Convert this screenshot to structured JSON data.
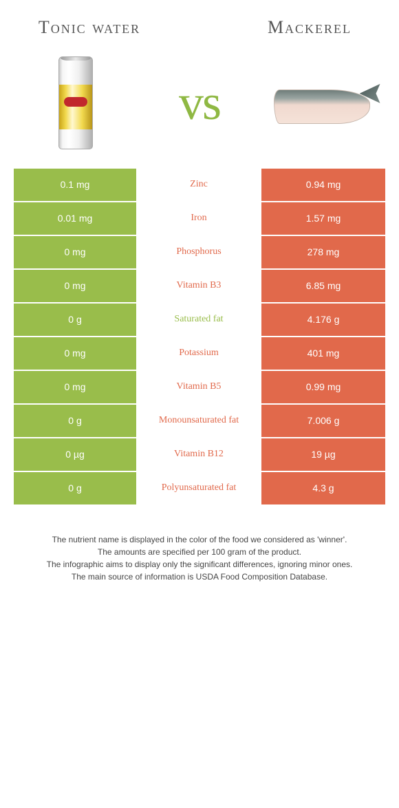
{
  "header": {
    "left_title": "Tonic water",
    "right_title": "Mackerel",
    "vs": "vs"
  },
  "colors": {
    "left": "#99bd4b",
    "right": "#e1694b",
    "vs": "#8fb843"
  },
  "rows": [
    {
      "left": "0.1 mg",
      "name": "Zinc",
      "winner": "right",
      "right": "0.94 mg"
    },
    {
      "left": "0.01 mg",
      "name": "Iron",
      "winner": "right",
      "right": "1.57 mg"
    },
    {
      "left": "0 mg",
      "name": "Phosphorus",
      "winner": "right",
      "right": "278 mg"
    },
    {
      "left": "0 mg",
      "name": "Vitamin B3",
      "winner": "right",
      "right": "6.85 mg"
    },
    {
      "left": "0 g",
      "name": "Saturated fat",
      "winner": "left",
      "right": "4.176 g"
    },
    {
      "left": "0 mg",
      "name": "Potassium",
      "winner": "right",
      "right": "401 mg"
    },
    {
      "left": "0 mg",
      "name": "Vitamin B5",
      "winner": "right",
      "right": "0.99 mg"
    },
    {
      "left": "0 g",
      "name": "Monounsaturated fat",
      "winner": "right",
      "right": "7.006 g"
    },
    {
      "left": "0 µg",
      "name": "Vitamin B12",
      "winner": "right",
      "right": "19 µg"
    },
    {
      "left": "0 g",
      "name": "Polyunsaturated fat",
      "winner": "right",
      "right": "4.3 g"
    }
  ],
  "footer": {
    "line1": "The nutrient name is displayed in the color of the food we considered as 'winner'.",
    "line2": "The amounts are specified per 100 gram of the product.",
    "line3": "The infographic aims to display only the significant differences, ignoring minor ones.",
    "line4": "The main source of information is USDA Food Composition Database."
  }
}
